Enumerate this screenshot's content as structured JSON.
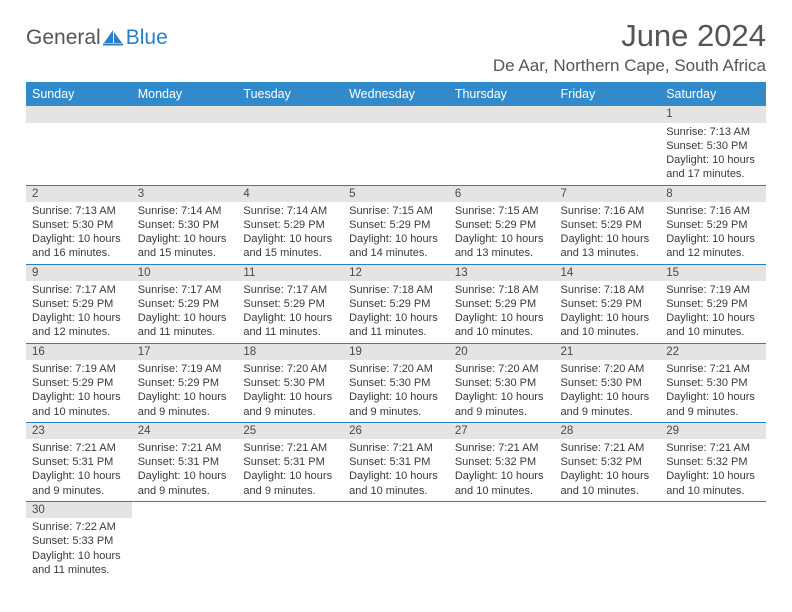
{
  "brand": {
    "general": "General",
    "blue": "Blue"
  },
  "title": "June 2024",
  "location": "De Aar, Northern Cape, South Africa",
  "colors": {
    "header_bg": "#338acb",
    "header_text": "#ffffff",
    "cell_border": "#2a7fc9",
    "daynum_bg": "#e4e4e4",
    "text": "#3a3a3a",
    "logo_blue": "#2a7fc9"
  },
  "weekdays": [
    "Sunday",
    "Monday",
    "Tuesday",
    "Wednesday",
    "Thursday",
    "Friday",
    "Saturday"
  ],
  "weeks": [
    [
      null,
      null,
      null,
      null,
      null,
      null,
      {
        "n": "1",
        "sr": "Sunrise: 7:13 AM",
        "ss": "Sunset: 5:30 PM",
        "d1": "Daylight: 10 hours",
        "d2": "and 17 minutes."
      }
    ],
    [
      {
        "n": "2",
        "sr": "Sunrise: 7:13 AM",
        "ss": "Sunset: 5:30 PM",
        "d1": "Daylight: 10 hours",
        "d2": "and 16 minutes."
      },
      {
        "n": "3",
        "sr": "Sunrise: 7:14 AM",
        "ss": "Sunset: 5:30 PM",
        "d1": "Daylight: 10 hours",
        "d2": "and 15 minutes."
      },
      {
        "n": "4",
        "sr": "Sunrise: 7:14 AM",
        "ss": "Sunset: 5:29 PM",
        "d1": "Daylight: 10 hours",
        "d2": "and 15 minutes."
      },
      {
        "n": "5",
        "sr": "Sunrise: 7:15 AM",
        "ss": "Sunset: 5:29 PM",
        "d1": "Daylight: 10 hours",
        "d2": "and 14 minutes."
      },
      {
        "n": "6",
        "sr": "Sunrise: 7:15 AM",
        "ss": "Sunset: 5:29 PM",
        "d1": "Daylight: 10 hours",
        "d2": "and 13 minutes."
      },
      {
        "n": "7",
        "sr": "Sunrise: 7:16 AM",
        "ss": "Sunset: 5:29 PM",
        "d1": "Daylight: 10 hours",
        "d2": "and 13 minutes."
      },
      {
        "n": "8",
        "sr": "Sunrise: 7:16 AM",
        "ss": "Sunset: 5:29 PM",
        "d1": "Daylight: 10 hours",
        "d2": "and 12 minutes."
      }
    ],
    [
      {
        "n": "9",
        "sr": "Sunrise: 7:17 AM",
        "ss": "Sunset: 5:29 PM",
        "d1": "Daylight: 10 hours",
        "d2": "and 12 minutes."
      },
      {
        "n": "10",
        "sr": "Sunrise: 7:17 AM",
        "ss": "Sunset: 5:29 PM",
        "d1": "Daylight: 10 hours",
        "d2": "and 11 minutes."
      },
      {
        "n": "11",
        "sr": "Sunrise: 7:17 AM",
        "ss": "Sunset: 5:29 PM",
        "d1": "Daylight: 10 hours",
        "d2": "and 11 minutes."
      },
      {
        "n": "12",
        "sr": "Sunrise: 7:18 AM",
        "ss": "Sunset: 5:29 PM",
        "d1": "Daylight: 10 hours",
        "d2": "and 11 minutes."
      },
      {
        "n": "13",
        "sr": "Sunrise: 7:18 AM",
        "ss": "Sunset: 5:29 PM",
        "d1": "Daylight: 10 hours",
        "d2": "and 10 minutes."
      },
      {
        "n": "14",
        "sr": "Sunrise: 7:18 AM",
        "ss": "Sunset: 5:29 PM",
        "d1": "Daylight: 10 hours",
        "d2": "and 10 minutes."
      },
      {
        "n": "15",
        "sr": "Sunrise: 7:19 AM",
        "ss": "Sunset: 5:29 PM",
        "d1": "Daylight: 10 hours",
        "d2": "and 10 minutes."
      }
    ],
    [
      {
        "n": "16",
        "sr": "Sunrise: 7:19 AM",
        "ss": "Sunset: 5:29 PM",
        "d1": "Daylight: 10 hours",
        "d2": "and 10 minutes."
      },
      {
        "n": "17",
        "sr": "Sunrise: 7:19 AM",
        "ss": "Sunset: 5:29 PM",
        "d1": "Daylight: 10 hours",
        "d2": "and 9 minutes."
      },
      {
        "n": "18",
        "sr": "Sunrise: 7:20 AM",
        "ss": "Sunset: 5:30 PM",
        "d1": "Daylight: 10 hours",
        "d2": "and 9 minutes."
      },
      {
        "n": "19",
        "sr": "Sunrise: 7:20 AM",
        "ss": "Sunset: 5:30 PM",
        "d1": "Daylight: 10 hours",
        "d2": "and 9 minutes."
      },
      {
        "n": "20",
        "sr": "Sunrise: 7:20 AM",
        "ss": "Sunset: 5:30 PM",
        "d1": "Daylight: 10 hours",
        "d2": "and 9 minutes."
      },
      {
        "n": "21",
        "sr": "Sunrise: 7:20 AM",
        "ss": "Sunset: 5:30 PM",
        "d1": "Daylight: 10 hours",
        "d2": "and 9 minutes."
      },
      {
        "n": "22",
        "sr": "Sunrise: 7:21 AM",
        "ss": "Sunset: 5:30 PM",
        "d1": "Daylight: 10 hours",
        "d2": "and 9 minutes."
      }
    ],
    [
      {
        "n": "23",
        "sr": "Sunrise: 7:21 AM",
        "ss": "Sunset: 5:31 PM",
        "d1": "Daylight: 10 hours",
        "d2": "and 9 minutes."
      },
      {
        "n": "24",
        "sr": "Sunrise: 7:21 AM",
        "ss": "Sunset: 5:31 PM",
        "d1": "Daylight: 10 hours",
        "d2": "and 9 minutes."
      },
      {
        "n": "25",
        "sr": "Sunrise: 7:21 AM",
        "ss": "Sunset: 5:31 PM",
        "d1": "Daylight: 10 hours",
        "d2": "and 9 minutes."
      },
      {
        "n": "26",
        "sr": "Sunrise: 7:21 AM",
        "ss": "Sunset: 5:31 PM",
        "d1": "Daylight: 10 hours",
        "d2": "and 10 minutes."
      },
      {
        "n": "27",
        "sr": "Sunrise: 7:21 AM",
        "ss": "Sunset: 5:32 PM",
        "d1": "Daylight: 10 hours",
        "d2": "and 10 minutes."
      },
      {
        "n": "28",
        "sr": "Sunrise: 7:21 AM",
        "ss": "Sunset: 5:32 PM",
        "d1": "Daylight: 10 hours",
        "d2": "and 10 minutes."
      },
      {
        "n": "29",
        "sr": "Sunrise: 7:21 AM",
        "ss": "Sunset: 5:32 PM",
        "d1": "Daylight: 10 hours",
        "d2": "and 10 minutes."
      }
    ],
    [
      {
        "n": "30",
        "sr": "Sunrise: 7:22 AM",
        "ss": "Sunset: 5:33 PM",
        "d1": "Daylight: 10 hours",
        "d2": "and 11 minutes."
      },
      null,
      null,
      null,
      null,
      null,
      null
    ]
  ]
}
